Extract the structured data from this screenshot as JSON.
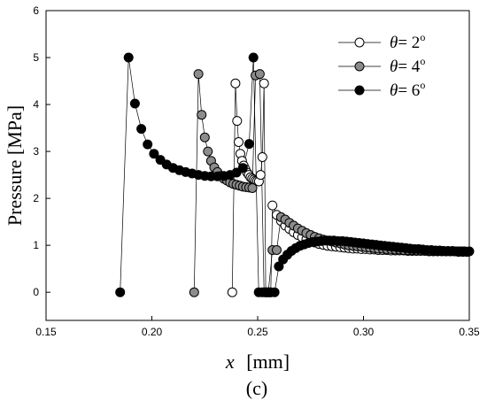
{
  "chart_data": {
    "type": "scatter",
    "xlabel_symbol": "x",
    "xlabel_unit": "[mm]",
    "ylabel": "Pressure  [MPa]",
    "caption": "(c)",
    "xlim": [
      0.15,
      0.35
    ],
    "ylim": [
      -0.6,
      6
    ],
    "xticks": [
      "0.15",
      "0.20",
      "0.25",
      "0.30",
      "0.35"
    ],
    "yticks": [
      "0",
      "1",
      "2",
      "3",
      "4",
      "5",
      "6"
    ],
    "legend_position": "top-right",
    "series": [
      {
        "label_symbol": "θ",
        "label_value": "= 2",
        "label_sup": "o",
        "fill": "#ffffff",
        "x": [
          0.238,
          0.2395,
          0.2403,
          0.241,
          0.2418,
          0.2426,
          0.2434,
          0.2442,
          0.245,
          0.2458,
          0.2466,
          0.2474,
          0.2482,
          0.249,
          0.2498,
          0.2506,
          0.2514,
          0.2522,
          0.253,
          0.2538,
          0.2546,
          0.2554,
          0.2562,
          0.257,
          0.259,
          0.261,
          0.263,
          0.265,
          0.267,
          0.269,
          0.271,
          0.273,
          0.275,
          0.277,
          0.279,
          0.281,
          0.283,
          0.285,
          0.287,
          0.289,
          0.291,
          0.293,
          0.295,
          0.297,
          0.299,
          0.301,
          0.303,
          0.305,
          0.307,
          0.309,
          0.311,
          0.313,
          0.315,
          0.317,
          0.319,
          0.321,
          0.323,
          0.325,
          0.327,
          0.329,
          0.331,
          0.333,
          0.335,
          0.337,
          0.339,
          0.341,
          0.343,
          0.345,
          0.347,
          0.349
        ],
        "y": [
          0,
          4.45,
          3.65,
          3.2,
          2.95,
          2.8,
          2.7,
          2.62,
          2.55,
          2.5,
          2.45,
          2.42,
          2.4,
          2.38,
          2.37,
          2.36,
          2.5,
          2.88,
          4.45,
          0,
          0,
          0,
          0,
          1.85,
          1.65,
          1.52,
          1.42,
          1.35,
          1.28,
          1.22,
          1.17,
          1.13,
          1.09,
          1.06,
          1.03,
          1.01,
          0.99,
          0.98,
          0.97,
          0.96,
          0.95,
          0.94,
          0.93,
          0.93,
          0.92,
          0.92,
          0.91,
          0.91,
          0.9,
          0.9,
          0.9,
          0.89,
          0.89,
          0.89,
          0.89,
          0.88,
          0.88,
          0.88,
          0.88,
          0.88,
          0.87,
          0.87,
          0.87,
          0.87,
          0.87,
          0.87,
          0.87,
          0.86,
          0.86,
          0.86
        ]
      },
      {
        "label_symbol": "θ",
        "label_value": "= 4",
        "label_sup": "o",
        "fill": "#8c8c8c",
        "x": [
          0.22,
          0.222,
          0.2235,
          0.225,
          0.2265,
          0.228,
          0.2295,
          0.231,
          0.2325,
          0.234,
          0.2355,
          0.237,
          0.2385,
          0.24,
          0.2415,
          0.243,
          0.2445,
          0.246,
          0.2475,
          0.249,
          0.251,
          0.253,
          0.255,
          0.257,
          0.259,
          0.261,
          0.263,
          0.265,
          0.267,
          0.269,
          0.271,
          0.273,
          0.275,
          0.277,
          0.279,
          0.281,
          0.283,
          0.285,
          0.287,
          0.289,
          0.291,
          0.293,
          0.295,
          0.297,
          0.299,
          0.301,
          0.303,
          0.305,
          0.307,
          0.309,
          0.311,
          0.313,
          0.315,
          0.317,
          0.319,
          0.321,
          0.323,
          0.325,
          0.327,
          0.329,
          0.331,
          0.333,
          0.335,
          0.337,
          0.339,
          0.341,
          0.343,
          0.345,
          0.347,
          0.349
        ],
        "y": [
          0,
          4.65,
          3.78,
          3.3,
          3.0,
          2.8,
          2.66,
          2.56,
          2.48,
          2.42,
          2.38,
          2.34,
          2.31,
          2.29,
          2.27,
          2.25,
          2.24,
          2.23,
          2.22,
          4.62,
          4.65,
          0,
          0,
          0.9,
          0.9,
          1.6,
          1.55,
          1.48,
          1.42,
          1.36,
          1.31,
          1.26,
          1.22,
          1.18,
          1.15,
          1.12,
          1.1,
          1.08,
          1.06,
          1.04,
          1.02,
          1.0,
          0.99,
          0.98,
          0.97,
          0.96,
          0.95,
          0.94,
          0.93,
          0.93,
          0.92,
          0.92,
          0.91,
          0.91,
          0.9,
          0.9,
          0.9,
          0.89,
          0.89,
          0.89,
          0.88,
          0.88,
          0.88,
          0.88,
          0.87,
          0.87,
          0.87,
          0.87,
          0.87,
          0.86
        ]
      },
      {
        "label_symbol": "θ",
        "label_value": "= 6",
        "label_sup": "o",
        "fill": "#000000",
        "x": [
          0.185,
          0.189,
          0.192,
          0.195,
          0.198,
          0.201,
          0.204,
          0.207,
          0.21,
          0.213,
          0.216,
          0.219,
          0.222,
          0.225,
          0.228,
          0.231,
          0.234,
          0.237,
          0.24,
          0.243,
          0.246,
          0.248,
          0.2505,
          0.252,
          0.254,
          0.256,
          0.258,
          0.26,
          0.262,
          0.264,
          0.266,
          0.268,
          0.27,
          0.272,
          0.274,
          0.276,
          0.278,
          0.28,
          0.282,
          0.284,
          0.286,
          0.288,
          0.29,
          0.292,
          0.294,
          0.296,
          0.298,
          0.3,
          0.302,
          0.304,
          0.306,
          0.308,
          0.31,
          0.312,
          0.314,
          0.316,
          0.318,
          0.32,
          0.322,
          0.324,
          0.326,
          0.328,
          0.33,
          0.332,
          0.334,
          0.336,
          0.338,
          0.34,
          0.342,
          0.344,
          0.346,
          0.348,
          0.35
        ],
        "y": [
          0,
          5.0,
          4.02,
          3.48,
          3.15,
          2.95,
          2.82,
          2.72,
          2.65,
          2.6,
          2.56,
          2.53,
          2.5,
          2.48,
          2.47,
          2.47,
          2.48,
          2.5,
          2.55,
          2.65,
          3.16,
          5.0,
          0,
          0,
          0,
          0,
          0,
          0.55,
          0.7,
          0.8,
          0.88,
          0.94,
          0.99,
          1.02,
          1.05,
          1.07,
          1.08,
          1.09,
          1.1,
          1.1,
          1.1,
          1.09,
          1.09,
          1.08,
          1.07,
          1.06,
          1.05,
          1.04,
          1.03,
          1.02,
          1.01,
          1.0,
          0.99,
          0.98,
          0.97,
          0.96,
          0.95,
          0.94,
          0.93,
          0.92,
          0.92,
          0.91,
          0.9,
          0.9,
          0.89,
          0.89,
          0.88,
          0.88,
          0.88,
          0.87,
          0.87,
          0.87,
          0.87
        ]
      }
    ]
  }
}
